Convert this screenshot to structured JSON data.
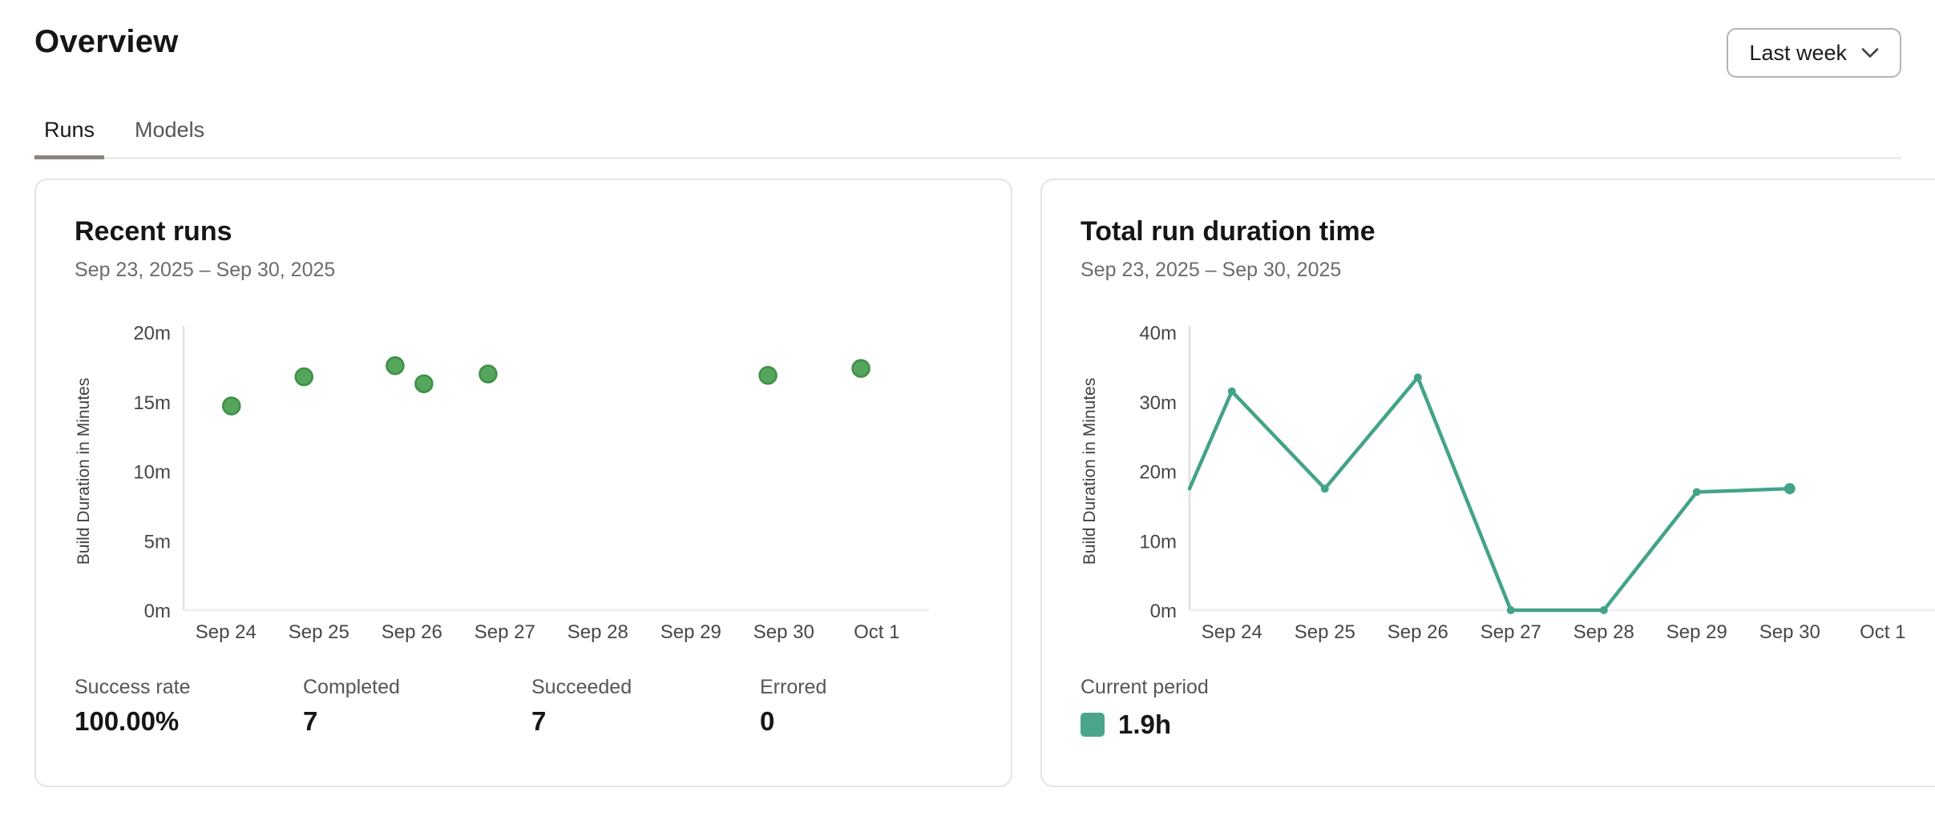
{
  "page": {
    "title": "Overview"
  },
  "period_selector": {
    "label": "Last week",
    "icon": "chevron-down-icon"
  },
  "tabs": [
    {
      "label": "Runs",
      "active": true
    },
    {
      "label": "Models",
      "active": false
    }
  ],
  "colors": {
    "scatter_fill": "#55a55c",
    "scatter_stroke": "#3e8f47",
    "line": "#43a389",
    "legend_swatch": "#4ba58c",
    "axis_line": "#e0e0e0",
    "baseline": "#ededed",
    "tab_underline": "#89847e"
  },
  "cards": {
    "recent_runs": {
      "title": "Recent runs",
      "date_range": "Sep 23, 2025 – Sep 30, 2025",
      "stats": [
        {
          "label": "Success rate",
          "value": "100.00%"
        },
        {
          "label": "Completed",
          "value": "7"
        },
        {
          "label": "Succeeded",
          "value": "7"
        },
        {
          "label": "Errored",
          "value": "0"
        }
      ]
    },
    "total_run_duration": {
      "title": "Total run duration time",
      "date_range": "Sep 23, 2025 – Sep 30, 2025",
      "legend": {
        "label": "Current period",
        "value": "1.9h"
      }
    }
  },
  "chart_data": [
    {
      "type": "scatter",
      "title": "Recent runs",
      "subtitle": "Sep 23, 2025 – Sep 30, 2025",
      "xlabel": "",
      "ylabel": "Build Duration in Minutes",
      "ylim": [
        0,
        20
      ],
      "y_ticks": [
        0,
        5,
        10,
        15,
        20
      ],
      "y_tick_labels": [
        "0m",
        "5m",
        "10m",
        "15m",
        "20m"
      ],
      "x_tick_labels": [
        "Sep 24",
        "Sep 25",
        "Sep 26",
        "Sep 27",
        "Sep 28",
        "Sep 29",
        "Sep 30",
        "Oct 1"
      ],
      "grid": false,
      "points": [
        {
          "day": 0.06,
          "near": "Sep 24",
          "minutes": 14.7
        },
        {
          "day": 0.84,
          "near": "Sep 25",
          "minutes": 16.8
        },
        {
          "day": 1.82,
          "near": "Sep 26",
          "minutes": 17.6
        },
        {
          "day": 2.13,
          "near": "Sep 26",
          "minutes": 16.3
        },
        {
          "day": 2.82,
          "near": "Sep 27",
          "minutes": 17.0
        },
        {
          "day": 5.83,
          "near": "Sep 30",
          "minutes": 16.9
        },
        {
          "day": 6.83,
          "near": "Oct 1",
          "minutes": 17.4
        }
      ]
    },
    {
      "type": "line",
      "title": "Total run duration time",
      "subtitle": "Sep 23, 2025 – Sep 30, 2025",
      "xlabel": "",
      "ylabel": "Build Duration in Minutes",
      "ylim": [
        0,
        40
      ],
      "y_ticks": [
        0,
        10,
        20,
        30,
        40
      ],
      "y_tick_labels": [
        "0m",
        "10m",
        "20m",
        "30m",
        "40m"
      ],
      "x_tick_labels": [
        "Sep 24",
        "Sep 25",
        "Sep 26",
        "Sep 27",
        "Sep 28",
        "Sep 29",
        "Sep 30",
        "Oct 1"
      ],
      "grid": false,
      "legend_position": "bottom-left",
      "points": [
        {
          "day": -0.455,
          "date": "Sep 23",
          "minutes": 17.5
        },
        {
          "day": 0,
          "date": "Sep 24",
          "minutes": 31.5
        },
        {
          "day": 1,
          "date": "Sep 25",
          "minutes": 17.5
        },
        {
          "day": 2,
          "date": "Sep 26",
          "minutes": 33.5
        },
        {
          "day": 3,
          "date": "Sep 27",
          "minutes": 0
        },
        {
          "day": 4,
          "date": "Sep 28",
          "minutes": 0
        },
        {
          "day": 5,
          "date": "Sep 29",
          "minutes": 17.0
        },
        {
          "day": 6,
          "date": "Sep 30",
          "minutes": 17.5
        }
      ]
    }
  ]
}
